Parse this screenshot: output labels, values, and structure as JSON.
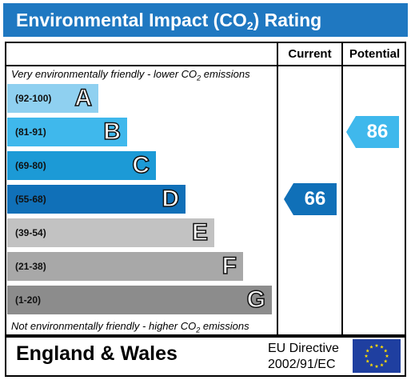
{
  "header": {
    "title_pre": "Environmental Impact (CO",
    "title_sub": "2",
    "title_post": ") Rating"
  },
  "columns": {
    "current": "Current",
    "potential": "Potential"
  },
  "notes": {
    "top_pre": "Very environmentally friendly - lower CO",
    "top_sub": "2",
    "top_post": " emissions",
    "bottom_pre": "Not environmentally friendly - higher CO",
    "bottom_sub": "2",
    "bottom_post": " emissions"
  },
  "footer": {
    "region": "England & Wales",
    "directive_line1": "EU Directive",
    "directive_line2": "2002/91/EC",
    "flag_icon": "eu-flag-icon"
  },
  "chart_data": {
    "type": "bar",
    "title": "Environmental Impact (CO2) Rating",
    "bands": [
      {
        "letter": "A",
        "range": "(92-100)",
        "color": "#8fd0f0"
      },
      {
        "letter": "B",
        "range": "(81-91)",
        "color": "#3fb8ec"
      },
      {
        "letter": "C",
        "range": "(69-80)",
        "color": "#1c9ad6"
      },
      {
        "letter": "D",
        "range": "(55-68)",
        "color": "#1070b8"
      },
      {
        "letter": "E",
        "range": "(39-54)",
        "color": "#c2c2c2"
      },
      {
        "letter": "F",
        "range": "(21-38)",
        "color": "#a8a8a8"
      },
      {
        "letter": "G",
        "range": "(1-20)",
        "color": "#8c8c8c"
      }
    ],
    "current": {
      "value": 66,
      "band": "D",
      "color": "#1070b8"
    },
    "potential": {
      "value": 86,
      "band": "B",
      "color": "#3fb8ec"
    }
  }
}
